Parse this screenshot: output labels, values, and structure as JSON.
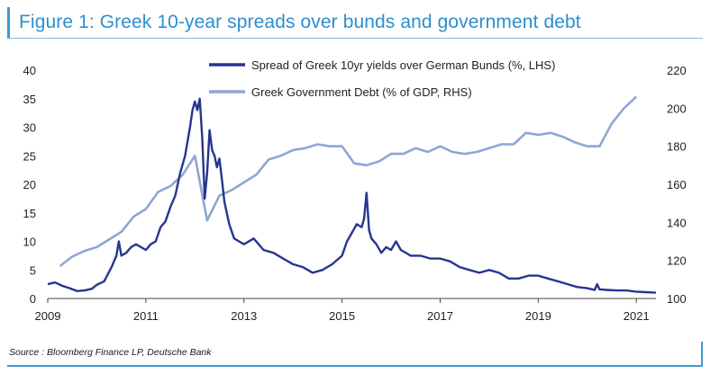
{
  "figure": {
    "title": "Figure 1: Greek 10-year spreads over bunds and government debt",
    "source": "Source : Bloomberg Finance LP, Deutsche Bank"
  },
  "colors": {
    "spread": "#27358f",
    "debt": "#8ea6d6",
    "accent": "#3a9bd5"
  },
  "chart_data": {
    "type": "line",
    "title": "",
    "legend_position": "top-center",
    "grid": false,
    "x_ticks": [
      "2009",
      "2011",
      "2013",
      "2015",
      "2017",
      "2019",
      "2021"
    ],
    "xlim": [
      2009.0,
      2021.4
    ],
    "y_left": {
      "label": "",
      "lim": [
        0,
        40
      ],
      "ticks": [
        "0",
        "5",
        "10",
        "15",
        "20",
        "25",
        "30",
        "35",
        "40"
      ]
    },
    "y_right": {
      "label": "",
      "lim": [
        100,
        220
      ],
      "ticks": [
        "100",
        "120",
        "140",
        "160",
        "180",
        "200",
        "220"
      ]
    },
    "series": [
      {
        "name": "Spread of Greek 10yr yields over German Bunds (%, LHS)",
        "axis": "left",
        "x": [
          2009.0,
          2009.15,
          2009.3,
          2009.45,
          2009.6,
          2009.75,
          2009.9,
          2010.0,
          2010.15,
          2010.3,
          2010.4,
          2010.45,
          2010.5,
          2010.6,
          2010.7,
          2010.8,
          2010.9,
          2011.0,
          2011.1,
          2011.2,
          2011.3,
          2011.4,
          2011.5,
          2011.6,
          2011.7,
          2011.8,
          2011.85,
          2011.9,
          2011.95,
          2012.0,
          2012.05,
          2012.1,
          2012.15,
          2012.2,
          2012.25,
          2012.3,
          2012.35,
          2012.4,
          2012.45,
          2012.5,
          2012.55,
          2012.6,
          2012.7,
          2012.8,
          2012.9,
          2013.0,
          2013.2,
          2013.4,
          2013.6,
          2013.8,
          2014.0,
          2014.2,
          2014.4,
          2014.6,
          2014.8,
          2015.0,
          2015.1,
          2015.2,
          2015.3,
          2015.4,
          2015.45,
          2015.5,
          2015.55,
          2015.6,
          2015.7,
          2015.8,
          2015.9,
          2016.0,
          2016.1,
          2016.2,
          2016.4,
          2016.6,
          2016.8,
          2017.0,
          2017.2,
          2017.4,
          2017.6,
          2017.8,
          2018.0,
          2018.2,
          2018.4,
          2018.6,
          2018.8,
          2019.0,
          2019.2,
          2019.4,
          2019.6,
          2019.8,
          2020.0,
          2020.15,
          2020.2,
          2020.25,
          2020.4,
          2020.6,
          2020.8,
          2021.0,
          2021.2,
          2021.4
        ],
        "values": [
          2.5,
          2.8,
          2.2,
          1.8,
          1.3,
          1.4,
          1.7,
          2.4,
          3.0,
          5.5,
          7.5,
          10.0,
          7.5,
          8.0,
          9.0,
          9.5,
          9.0,
          8.5,
          9.5,
          10.0,
          12.5,
          13.5,
          16.0,
          18.0,
          22.0,
          25.0,
          27.5,
          30.0,
          33.0,
          34.5,
          33.0,
          35.0,
          28.0,
          17.5,
          22.0,
          29.5,
          26.0,
          25.0,
          23.0,
          24.5,
          21.0,
          17.0,
          13.0,
          10.5,
          10.0,
          9.5,
          10.5,
          8.5,
          8.0,
          7.0,
          6.0,
          5.5,
          4.5,
          5.0,
          6.0,
          7.5,
          10.0,
          11.5,
          13.0,
          12.5,
          14.0,
          18.5,
          12.0,
          10.5,
          9.5,
          8.0,
          9.0,
          8.5,
          10.0,
          8.5,
          7.5,
          7.5,
          7.0,
          7.0,
          6.5,
          5.5,
          5.0,
          4.5,
          5.0,
          4.5,
          3.5,
          3.5,
          4.0,
          4.0,
          3.5,
          3.0,
          2.5,
          2.0,
          1.8,
          1.5,
          2.5,
          1.6,
          1.5,
          1.4,
          1.4,
          1.2,
          1.1,
          1.0
        ]
      },
      {
        "name": "Greek Government Debt (% of GDP, RHS)",
        "axis": "right",
        "x": [
          2009.25,
          2009.5,
          2009.75,
          2010.0,
          2010.25,
          2010.5,
          2010.75,
          2011.0,
          2011.25,
          2011.5,
          2011.75,
          2012.0,
          2012.25,
          2012.5,
          2012.75,
          2013.0,
          2013.25,
          2013.5,
          2013.75,
          2014.0,
          2014.25,
          2014.5,
          2014.75,
          2015.0,
          2015.25,
          2015.5,
          2015.75,
          2016.0,
          2016.25,
          2016.5,
          2016.75,
          2017.0,
          2017.25,
          2017.5,
          2017.75,
          2018.0,
          2018.25,
          2018.5,
          2018.75,
          2019.0,
          2019.25,
          2019.5,
          2019.75,
          2020.0,
          2020.25,
          2020.5,
          2020.75,
          2021.0
        ],
        "values": [
          117,
          122,
          125,
          127,
          131,
          135,
          143,
          147,
          156,
          159,
          165,
          175,
          141,
          154,
          157,
          161,
          165,
          173,
          175,
          178,
          179,
          181,
          180,
          180,
          171,
          170,
          172,
          176,
          176,
          179,
          177,
          180,
          177,
          176,
          177,
          179,
          181,
          181,
          187,
          186,
          187,
          185,
          182,
          180,
          180,
          192,
          200,
          206
        ]
      }
    ]
  }
}
